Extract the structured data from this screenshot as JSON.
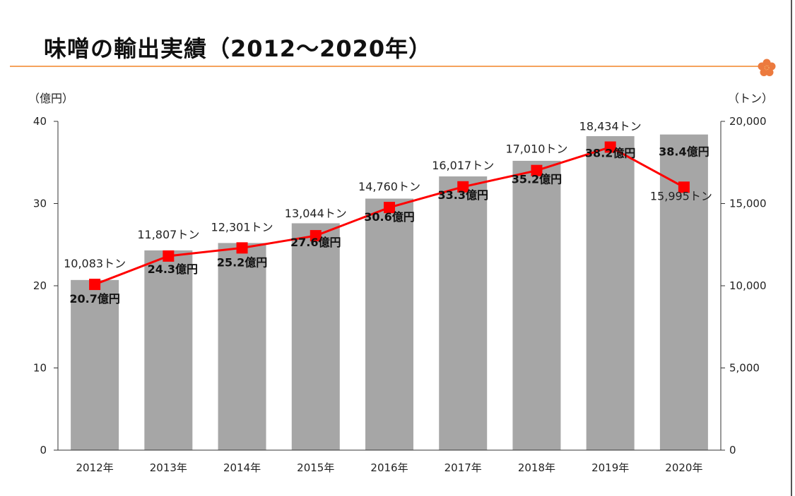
{
  "header": {
    "title": "味噌の輸出実績（2012～2020年）",
    "icon": "plum-blossom-icon",
    "accent_color": "#f5a25c"
  },
  "chart_data": {
    "type": "bar+line",
    "title": "味噌の輸出実績（2012～2020年）",
    "categories": [
      "2012年",
      "2013年",
      "2014年",
      "2015年",
      "2016年",
      "2017年",
      "2018年",
      "2019年",
      "2020年"
    ],
    "series": [
      {
        "type": "bar",
        "axis": "left",
        "color": "#a6a6a6",
        "values": [
          20.7,
          24.3,
          25.2,
          27.6,
          30.6,
          33.3,
          35.2,
          38.2,
          38.4
        ],
        "labels": [
          "20.7億円",
          "24.3億円",
          "25.2億円",
          "27.6億円",
          "30.6億円",
          "33.3億円",
          "35.2億円",
          "38.2億円",
          "38.4億円"
        ]
      },
      {
        "type": "line",
        "axis": "right",
        "color": "#ff0000",
        "marker": "square",
        "values": [
          10083,
          11807,
          12301,
          13044,
          14760,
          16017,
          17010,
          18434,
          15995
        ],
        "labels": [
          "10,083トン",
          "11,807トン",
          "12,301トン",
          "13,044トン",
          "14,760トン",
          "16,017トン",
          "17,010トン",
          "18,434トン",
          "15,995トン"
        ]
      }
    ],
    "y_left": {
      "unit": "（億円）",
      "range": [
        0,
        40
      ],
      "ticks": [
        "0",
        "10",
        "20",
        "30",
        "40"
      ]
    },
    "y_right": {
      "unit": "（トン）",
      "range": [
        0,
        20000
      ],
      "ticks": [
        "0",
        "5,000",
        "10,000",
        "15,000",
        "20,000"
      ]
    },
    "grid": false,
    "legend": "none"
  }
}
